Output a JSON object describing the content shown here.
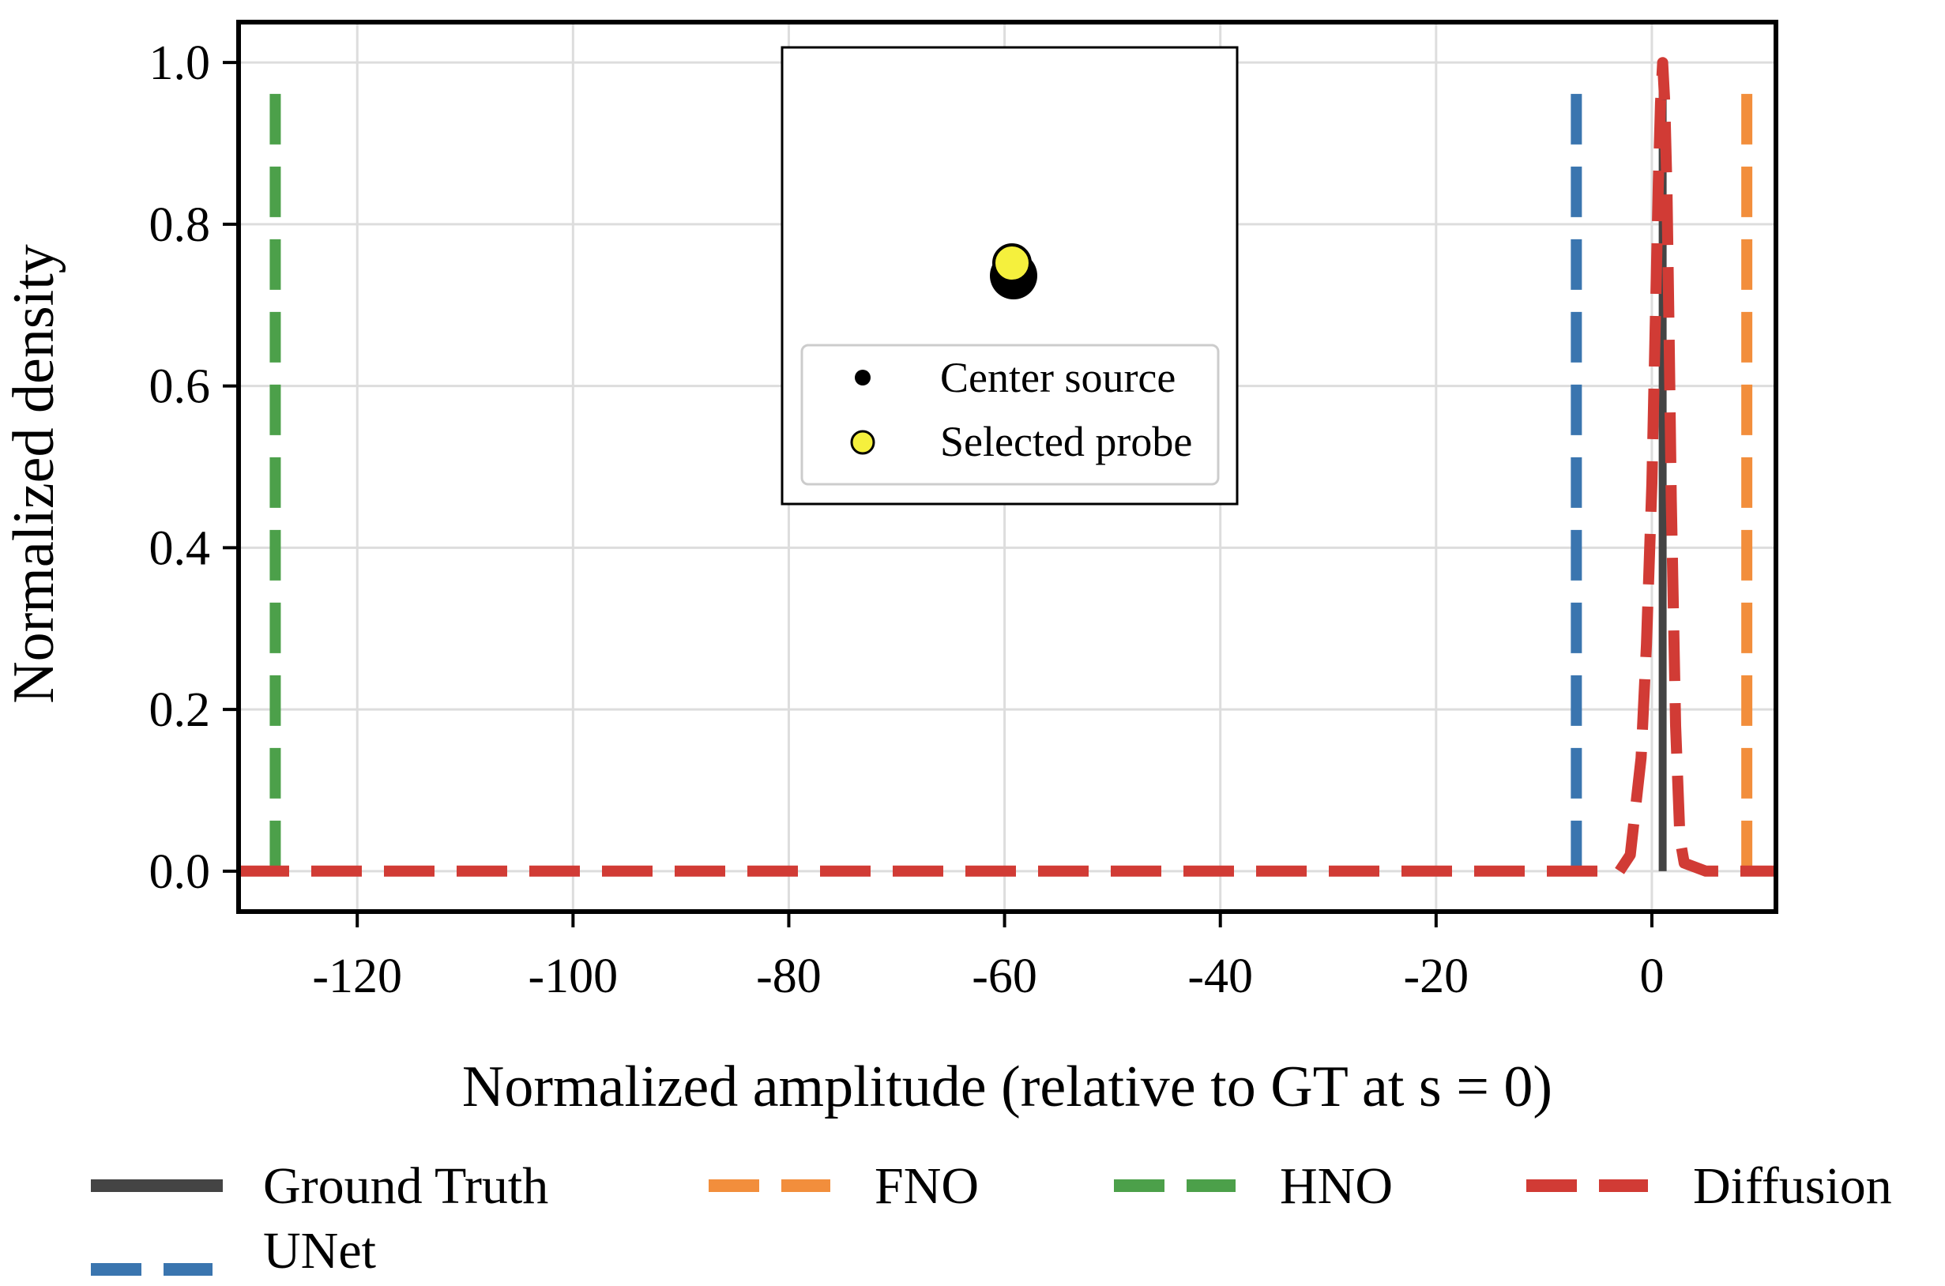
{
  "chart_data": {
    "type": "line",
    "xlabel": "Normalized amplitude (relative to GT at s = 0)",
    "ylabel": "Normalized density",
    "xlim": [
      -131,
      11.5
    ],
    "ylim": [
      -0.05,
      1.05
    ],
    "grid": true,
    "x_ticks": [
      -120,
      -100,
      -80,
      -60,
      -40,
      -20,
      0
    ],
    "x_tick_labels": [
      "-120",
      "-100",
      "-80",
      "-60",
      "-40",
      "-20",
      "0"
    ],
    "y_ticks": [
      0.0,
      0.2,
      0.4,
      0.6,
      0.8,
      1.0
    ],
    "y_tick_labels": [
      "0.0",
      "0.2",
      "0.4",
      "0.6",
      "0.8",
      "1.0"
    ],
    "series": [
      {
        "name": "Ground Truth",
        "color": "#444444",
        "style": "solid",
        "kind": "vline",
        "x": 1.0,
        "y": [
          0.0,
          1.0
        ]
      },
      {
        "name": "FNO",
        "color": "#f28e3c",
        "style": "dashed",
        "kind": "vline",
        "x": 8.8,
        "y": [
          0.0,
          0.97
        ]
      },
      {
        "name": "HNO",
        "color": "#4ca04a",
        "style": "dashed",
        "kind": "vline",
        "x": -127.6,
        "y": [
          0.0,
          0.97
        ]
      },
      {
        "name": "Diffusion",
        "color": "#d13b35",
        "style": "dashed",
        "kind": "curve",
        "x": [
          -131,
          -10,
          -3,
          -2,
          -1,
          -0.5,
          0,
          0.3,
          0.6,
          0.8,
          1.0,
          1.2,
          1.4,
          1.6,
          1.8,
          2.2,
          2.6,
          3,
          5,
          11.5
        ],
        "y": [
          0.0,
          0.0,
          0.0,
          0.02,
          0.14,
          0.28,
          0.48,
          0.67,
          0.85,
          0.95,
          1.0,
          0.95,
          0.84,
          0.66,
          0.46,
          0.18,
          0.04,
          0.01,
          0.0,
          0.0
        ]
      },
      {
        "name": "UNet",
        "color": "#3a75af",
        "style": "dashed",
        "kind": "vline",
        "x": -7.0,
        "y": [
          0.0,
          0.97
        ]
      }
    ],
    "inset": {
      "points": [
        {
          "name": "Center source",
          "color": "#000000"
        },
        {
          "name": "Selected probe",
          "color": "#f5f03d"
        }
      ],
      "legend": [
        "Center source",
        "Selected probe"
      ]
    },
    "legend": {
      "placement": "below",
      "entries": [
        "Ground Truth",
        "FNO",
        "HNO",
        "Diffusion",
        "UNet"
      ]
    }
  }
}
